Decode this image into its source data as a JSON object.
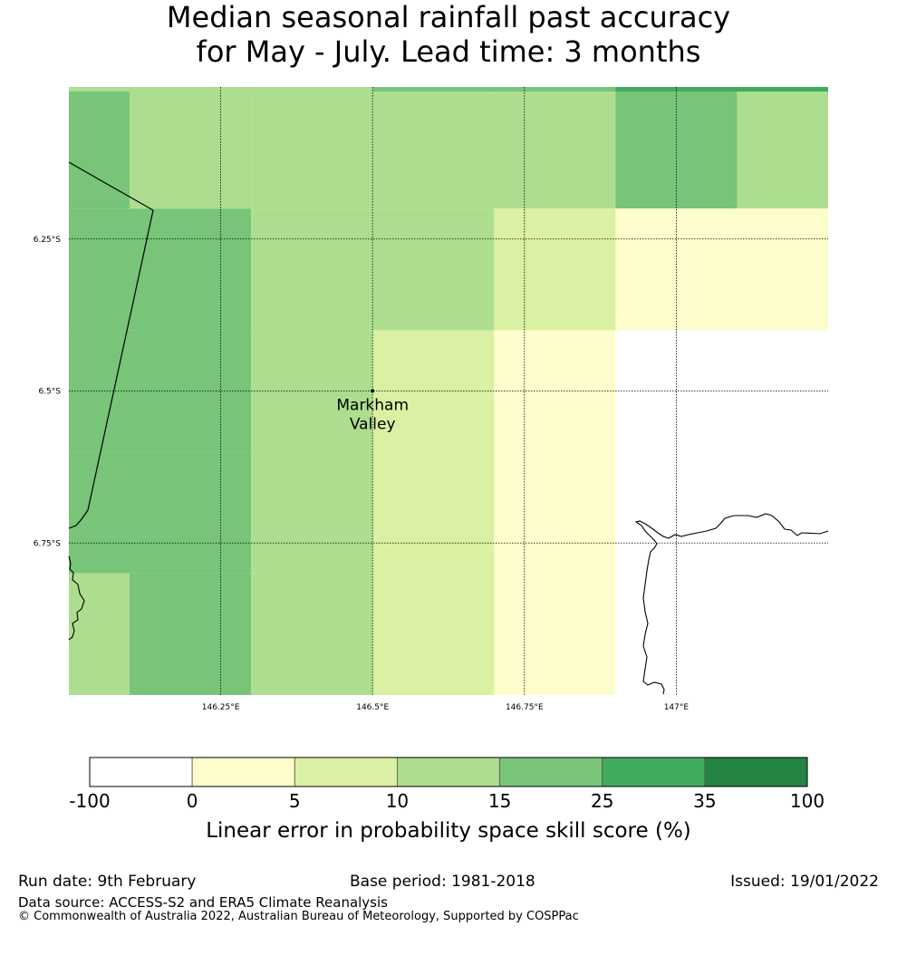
{
  "title": {
    "line1": "Median seasonal rainfall past accuracy",
    "line2": "for May - July. Lead time: 3 months"
  },
  "map": {
    "lon_range": [
      146.0,
      147.25
    ],
    "lat_range": [
      -6.0,
      -7.0
    ],
    "lon_ticks": [
      {
        "value": 146.25,
        "label": "146.25°E"
      },
      {
        "value": 146.5,
        "label": "146.5°E"
      },
      {
        "value": 146.75,
        "label": "146.75°E"
      },
      {
        "value": 147.0,
        "label": "147°E"
      }
    ],
    "lat_ticks": [
      {
        "value": -6.25,
        "label": "6.25°S"
      },
      {
        "value": -6.5,
        "label": "6.5°S"
      },
      {
        "value": -6.75,
        "label": "6.75°S"
      }
    ],
    "location": {
      "name": "Markham Valley",
      "line1": "Markham",
      "line2": "Valley",
      "lon": 146.5,
      "lat": -6.5
    },
    "colors": [
      "#ffffff",
      "#fdfdcc",
      "#daf0a2",
      "#addd8e",
      "#78c479",
      "#41ab5d",
      "#238443"
    ],
    "cell_lon_edges": [
      146.0,
      146.1,
      146.3,
      146.5,
      146.7,
      146.9,
      147.1,
      147.25
    ],
    "cell_lat_edges": [
      -6.0,
      -6.2,
      -6.4,
      -6.6,
      -6.8,
      -7.0
    ],
    "cells": [
      [
        4,
        3,
        3,
        3,
        3,
        4,
        3
      ],
      [
        4,
        4,
        3,
        3,
        2,
        1,
        1
      ],
      [
        4,
        4,
        3,
        2,
        1,
        0,
        0
      ],
      [
        4,
        4,
        3,
        2,
        1,
        0,
        0
      ],
      [
        3,
        4,
        3,
        2,
        1,
        0,
        0
      ]
    ],
    "top_strip": [
      {
        "lon": [
          146.0,
          146.5
        ],
        "color_index": 3
      },
      {
        "lon": [
          146.5,
          146.9
        ],
        "color_index": 4
      },
      {
        "lon": [
          146.9,
          147.25
        ],
        "color_index": 5
      }
    ]
  },
  "colorbar": {
    "label": "Linear error in probability space skill score (%)",
    "tick_labels": [
      "-100",
      "0",
      "5",
      "10",
      "15",
      "25",
      "35",
      "100"
    ],
    "colors": [
      "#ffffff",
      "#fdfdcc",
      "#daf0a2",
      "#addd8e",
      "#78c479",
      "#41ab5d",
      "#238443"
    ]
  },
  "footer": {
    "run_date": "Run date: 9th February",
    "base_period": "Base period: 1981-2018",
    "issued": "Issued: 19/01/2022",
    "data_source": "Data source: ACCESS-S2 and ERA5 Climate Reanalysis",
    "copyright": "© Commonwealth of Australia 2022, Australian Bureau of Meteorology, Supported by COSPPac"
  }
}
